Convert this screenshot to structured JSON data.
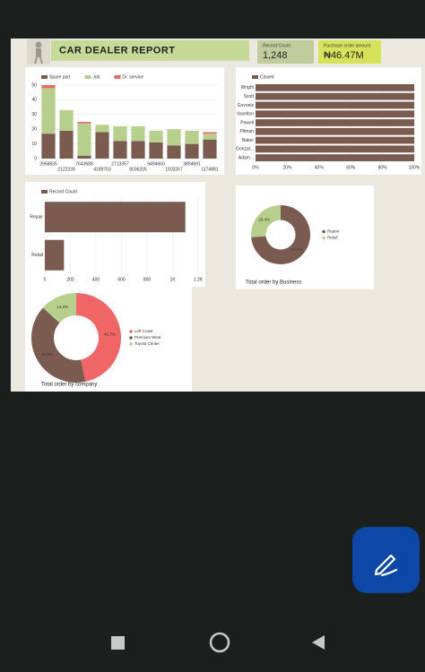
{
  "header": {
    "title": "CAR DEALER REPORT",
    "kpis": [
      {
        "label": "Record Count",
        "value": "1,248"
      },
      {
        "label": "Purchase order amount",
        "value": "₦46.47M"
      }
    ]
  },
  "chart_data": [
    {
      "type": "bar",
      "stacked": true,
      "categories": [
        "2968835",
        "2122239",
        "7643688",
        "4189703",
        "2713357",
        "8036205",
        "9494660",
        "1503267",
        "3894691",
        "1174881"
      ],
      "series": [
        {
          "name": "Spare part",
          "color": "#7b5b50",
          "values": [
            17,
            19,
            2,
            18,
            12,
            12,
            11,
            9,
            10,
            13
          ]
        },
        {
          "name": "Job",
          "color": "#b6cf8c",
          "values": [
            31,
            14,
            22,
            5,
            10,
            10,
            8,
            11,
            9,
            4
          ]
        },
        {
          "name": "Dr. service",
          "color": "#e8696a",
          "values": [
            2,
            0,
            1,
            0,
            0,
            0,
            0,
            0,
            0,
            1
          ]
        }
      ],
      "ylim": [
        0,
        50
      ],
      "yticks": [
        0,
        10,
        20,
        30,
        40,
        50
      ]
    },
    {
      "type": "barh",
      "categories": [
        "Wright",
        "Scott",
        "Govonis",
        "Vaselton",
        "Powell",
        "Pitman",
        "Baker",
        "Gonzal...",
        "Adam..."
      ],
      "series": [
        {
          "name": "Closed",
          "color": "#7b5b50",
          "values": [
            100,
            100,
            100,
            100,
            100,
            100,
            100,
            100,
            100
          ]
        }
      ],
      "xlim": [
        0,
        100
      ],
      "xticks": [
        {
          "value": 0,
          "label": "0%"
        },
        {
          "value": 20,
          "label": "20%"
        },
        {
          "value": 40,
          "label": "40%"
        },
        {
          "value": 60,
          "label": "60%"
        },
        {
          "value": 80,
          "label": "80%"
        },
        {
          "value": 100,
          "label": "100%"
        }
      ]
    },
    {
      "type": "barh",
      "categories": [
        "Repair",
        "Retail"
      ],
      "series": [
        {
          "name": "Record Count",
          "color": "#7b5b50",
          "values": [
            1100,
            150
          ]
        }
      ],
      "xlim": [
        0,
        1200
      ],
      "xticks": [
        0,
        200,
        400,
        600,
        800,
        {
          "value": 1000,
          "label": "1K"
        },
        {
          "value": 1200,
          "label": "1.2K"
        }
      ]
    },
    {
      "type": "pie",
      "donut": true,
      "title": "Total order by Business",
      "categories": [
        "Repair",
        "Retail"
      ],
      "values": [
        73.6,
        26.4
      ],
      "value_labels": [
        "73.6%",
        "26.4%"
      ],
      "colors": [
        "#7b5b50",
        "#b6cf8c"
      ]
    },
    {
      "type": "pie",
      "donut": true,
      "title": "Total order by company",
      "categories": [
        "Left Coast",
        "Premium West",
        "Toyota Center"
      ],
      "values": [
        46.7,
        40.0,
        13.3
      ],
      "value_labels": [
        "46.7%",
        "40.0%",
        "13.3%"
      ],
      "colors": [
        "#f06565",
        "#7b5b50",
        "#b6cf8c"
      ]
    }
  ]
}
